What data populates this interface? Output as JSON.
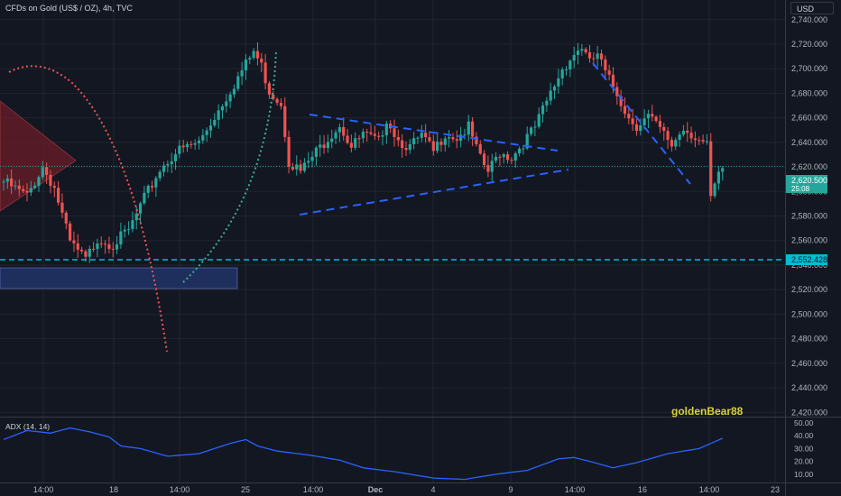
{
  "header": {
    "symbol_label": "CFDs on Gold (US$ / OZ), 4h, TVC",
    "currency_button": "USD"
  },
  "watermark": "goldenBear88",
  "indicator": {
    "label": "ADX (14, 14)"
  },
  "price_badges": {
    "last_price": "2,620.500",
    "countdown": "25:08",
    "level_price": "2,552.428"
  },
  "colors": {
    "up": "#26a69a",
    "down": "#ef5350",
    "background": "#131722",
    "adx_line": "#2962ff",
    "level_line": "#00bcd4",
    "support_zone": "#1e2f5e"
  },
  "chart_data": {
    "type": "candlestick",
    "y_axis": {
      "ticks": [
        "2,420.000",
        "2,440.000",
        "2,460.000",
        "2,480.000",
        "2,500.000",
        "2,520.000",
        "2,540.000",
        "2,560.000",
        "2,580.000",
        "2,600.000",
        "2,620.000",
        "2,640.000",
        "2,660.000",
        "2,680.000",
        "2,700.000",
        "2,720.000",
        "2,740.000"
      ],
      "range": [
        2418,
        2756
      ]
    },
    "x_axis": {
      "ticks": [
        "14:00",
        "18",
        "14:00",
        "25",
        "14:00",
        "Dec",
        "4",
        "9",
        "14:00",
        "16",
        "14:00",
        "23"
      ]
    },
    "anchors": [
      [
        0,
        2608
      ],
      [
        6,
        2596
      ],
      [
        10,
        2620
      ],
      [
        13,
        2603
      ],
      [
        17,
        2558
      ],
      [
        21,
        2544
      ],
      [
        24,
        2562
      ],
      [
        28,
        2557
      ],
      [
        32,
        2568
      ],
      [
        36,
        2594
      ],
      [
        40,
        2618
      ],
      [
        44,
        2632
      ],
      [
        50,
        2640
      ],
      [
        56,
        2672
      ],
      [
        60,
        2693
      ],
      [
        64,
        2714
      ],
      [
        66,
        2702
      ],
      [
        68,
        2682
      ],
      [
        71,
        2672
      ],
      [
        73,
        2625
      ],
      [
        76,
        2616
      ],
      [
        80,
        2632
      ],
      [
        83,
        2644
      ],
      [
        86,
        2655
      ],
      [
        89,
        2636
      ],
      [
        92,
        2646
      ],
      [
        96,
        2640
      ],
      [
        98,
        2660
      ],
      [
        101,
        2642
      ],
      [
        104,
        2636
      ],
      [
        107,
        2645
      ],
      [
        110,
        2632
      ],
      [
        113,
        2648
      ],
      [
        116,
        2644
      ],
      [
        119,
        2652
      ],
      [
        122,
        2626
      ],
      [
        124,
        2616
      ],
      [
        127,
        2632
      ],
      [
        130,
        2628
      ],
      [
        133,
        2640
      ],
      [
        136,
        2652
      ],
      [
        140,
        2680
      ],
      [
        143,
        2700
      ],
      [
        146,
        2712
      ],
      [
        148,
        2718
      ],
      [
        150,
        2704
      ],
      [
        152,
        2712
      ],
      [
        154,
        2696
      ],
      [
        157,
        2680
      ],
      [
        160,
        2660
      ],
      [
        162,
        2654
      ],
      [
        165,
        2661
      ],
      [
        168,
        2650
      ],
      [
        171,
        2638
      ],
      [
        174,
        2652
      ],
      [
        177,
        2645
      ],
      [
        180,
        2636
      ],
      [
        181,
        2594
      ],
      [
        183,
        2612
      ],
      [
        184,
        2619
      ]
    ],
    "adx": {
      "scale_ticks": [
        "10.00",
        "20.00",
        "30.00",
        "40.00",
        "50.00"
      ],
      "range": [
        5,
        52
      ],
      "anchors": [
        [
          0,
          37
        ],
        [
          6,
          44
        ],
        [
          12,
          42
        ],
        [
          17,
          46
        ],
        [
          22,
          43
        ],
        [
          27,
          39
        ],
        [
          30,
          32
        ],
        [
          35,
          30
        ],
        [
          42,
          24
        ],
        [
          50,
          26
        ],
        [
          58,
          34
        ],
        [
          62,
          37
        ],
        [
          65,
          32
        ],
        [
          70,
          28
        ],
        [
          78,
          25
        ],
        [
          86,
          21
        ],
        [
          92,
          15
        ],
        [
          100,
          12
        ],
        [
          110,
          7
        ],
        [
          118,
          6
        ],
        [
          126,
          10
        ],
        [
          134,
          13
        ],
        [
          142,
          22
        ],
        [
          146,
          23
        ],
        [
          150,
          20
        ],
        [
          156,
          15
        ],
        [
          162,
          19
        ],
        [
          170,
          26
        ],
        [
          178,
          30
        ],
        [
          184,
          38
        ]
      ]
    },
    "support_level": 2552.428,
    "last_price": 2620.5
  }
}
